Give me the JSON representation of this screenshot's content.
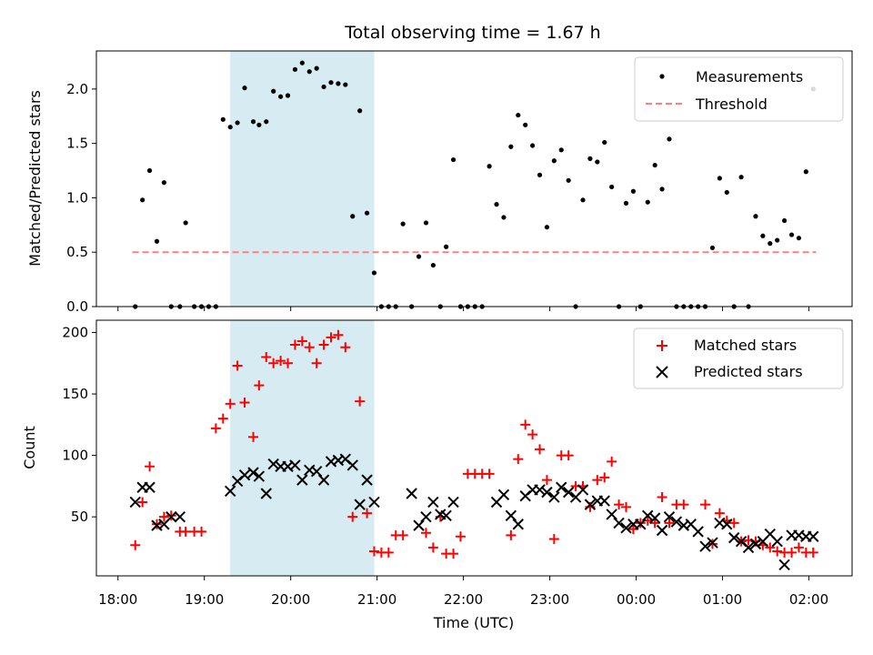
{
  "chart_data": {
    "title": "Total observing time = 1.67 h",
    "xlabel": "Time (UTC)",
    "x_ticks": [
      "18:00",
      "19:00",
      "20:00",
      "21:00",
      "22:00",
      "23:00",
      "00:00",
      "01:00",
      "02:00"
    ],
    "x_range_hours": [
      17.75,
      26.5
    ],
    "shaded_region": {
      "start": "19:18",
      "end": "20:58",
      "color": "#add8e6"
    },
    "panels": [
      {
        "type": "scatter",
        "ylabel": "Matched/Predicted stars",
        "ylim": [
          0,
          2.35
        ],
        "yticks": [
          "0.0",
          "0.5",
          "1.0",
          "1.5",
          "2.0"
        ],
        "legend": [
          "Measurements",
          "Threshold"
        ],
        "legend_position": "top-right",
        "threshold": {
          "value": 0.5,
          "x_start": "18:10",
          "x_end": "02:05",
          "color": "#ff7f7f"
        },
        "series": [
          {
            "name": "Measurements",
            "color": "#000000",
            "x": [
              "18:12",
              "18:17",
              "18:22",
              "18:27",
              "18:32",
              "18:37",
              "18:43",
              "18:47",
              "18:53",
              "18:58",
              "19:03",
              "19:08",
              "19:13",
              "19:18",
              "19:23",
              "19:28",
              "19:34",
              "19:38",
              "19:43",
              "19:48",
              "19:53",
              "19:58",
              "20:03",
              "20:08",
              "20:13",
              "20:18",
              "20:23",
              "20:28",
              "20:33",
              "20:38",
              "20:43",
              "20:48",
              "20:53",
              "20:58",
              "21:03",
              "21:08",
              "21:13",
              "21:18",
              "21:24",
              "21:29",
              "21:34",
              "21:39",
              "21:44",
              "21:48",
              "21:53",
              "21:58",
              "22:03",
              "22:08",
              "22:13",
              "22:18",
              "22:23",
              "22:28",
              "22:33",
              "22:38",
              "22:43",
              "22:48",
              "22:53",
              "22:58",
              "23:03",
              "23:08",
              "23:13",
              "23:18",
              "23:23",
              "23:28",
              "23:33",
              "23:38",
              "23:43",
              "23:48",
              "23:53",
              "23:58",
              "00:03",
              "00:08",
              "00:13",
              "00:18",
              "00:23",
              "00:28",
              "00:33",
              "00:38",
              "00:43",
              "00:48",
              "00:53",
              "00:58",
              "01:03",
              "01:08",
              "01:13",
              "01:18",
              "01:23",
              "01:28",
              "01:33",
              "01:38",
              "01:43",
              "01:48",
              "01:53",
              "01:58",
              "02:03"
            ],
            "y": [
              0.0,
              0.98,
              1.25,
              0.6,
              1.14,
              0.0,
              0.0,
              0.77,
              0.0,
              0.0,
              0.0,
              0.0,
              1.72,
              1.65,
              1.69,
              2.01,
              1.7,
              1.67,
              1.7,
              1.98,
              1.93,
              1.94,
              2.18,
              2.24,
              2.16,
              2.19,
              2.02,
              2.06,
              2.05,
              2.04,
              0.83,
              1.8,
              0.86,
              0.31,
              0.0,
              0.0,
              0.0,
              0.76,
              0.0,
              0.46,
              0.77,
              0.38,
              0.0,
              0.55,
              1.35,
              0.0,
              0.0,
              0.0,
              0.0,
              1.29,
              0.94,
              0.82,
              1.47,
              1.76,
              1.67,
              1.48,
              1.21,
              0.73,
              1.34,
              1.44,
              1.16,
              0.0,
              0.98,
              1.36,
              1.33,
              1.51,
              1.1,
              0.0,
              0.95,
              1.06,
              0.0,
              0.96,
              1.3,
              1.08,
              1.54,
              0.0,
              0.0,
              0.0,
              0.0,
              0.0,
              0.54,
              1.18,
              1.05,
              0.0,
              1.19,
              0.0,
              0.83,
              0.65,
              0.58,
              0.61,
              0.79,
              0.66,
              0.63,
              1.24,
              2.0
            ]
          }
        ]
      },
      {
        "type": "scatter",
        "ylabel": "Count",
        "ylim": [
          2,
          210
        ],
        "yticks": [
          "50",
          "100",
          "150",
          "200"
        ],
        "legend": [
          "Matched stars",
          "Predicted stars"
        ],
        "legend_position": "top-right",
        "series": [
          {
            "name": "Matched stars",
            "color": "#ff0000",
            "marker": "+",
            "x": [
              "18:12",
              "18:17",
              "18:22",
              "18:27",
              "18:32",
              "18:37",
              "18:43",
              "18:47",
              "18:53",
              "18:58",
              "19:08",
              "19:13",
              "19:18",
              "19:23",
              "19:28",
              "19:34",
              "19:38",
              "19:43",
              "19:48",
              "19:53",
              "19:58",
              "20:03",
              "20:08",
              "20:13",
              "20:18",
              "20:23",
              "20:28",
              "20:33",
              "20:38",
              "20:43",
              "20:48",
              "20:53",
              "20:58",
              "21:03",
              "21:08",
              "21:13",
              "21:18",
              "21:34",
              "21:39",
              "21:44",
              "21:48",
              "21:53",
              "21:58",
              "22:03",
              "22:08",
              "22:13",
              "22:18",
              "22:33",
              "22:38",
              "22:43",
              "22:48",
              "22:53",
              "22:58",
              "23:03",
              "23:08",
              "23:13",
              "23:18",
              "23:23",
              "23:28",
              "23:33",
              "23:38",
              "23:43",
              "23:48",
              "23:53",
              "23:58",
              "00:03",
              "00:08",
              "00:13",
              "00:18",
              "00:23",
              "00:28",
              "00:33",
              "00:48",
              "00:53",
              "00:58",
              "01:03",
              "01:08",
              "01:13",
              "01:18",
              "01:23",
              "01:28",
              "01:33",
              "01:38",
              "01:43",
              "01:48",
              "01:53",
              "01:58",
              "02:03"
            ],
            "y": [
              27,
              62,
              91,
              44,
              50,
              51,
              38,
              38,
              38,
              38,
              122,
              130,
              142,
              173,
              143,
              115,
              157,
              180,
              175,
              177,
              175,
              190,
              193,
              188,
              175,
              190,
              196,
              198,
              188,
              50,
              144,
              53,
              22,
              21,
              21,
              35,
              35,
              37,
              25,
              50,
              20,
              20,
              34,
              85,
              85,
              85,
              85,
              35,
              97,
              125,
              117,
              105,
              80,
              32,
              100,
              100,
              75,
              75,
              58,
              80,
              82,
              95,
              60,
              58,
              40,
              45,
              47,
              45,
              66,
              45,
              60,
              60,
              60,
              28,
              53,
              47,
              45,
              30,
              31,
              30,
              27,
              25,
              22,
              21,
              21,
              25,
              21,
              21
            ]
          },
          {
            "name": "Predicted stars",
            "color": "#000000",
            "marker": "x",
            "x": [
              "18:12",
              "18:17",
              "18:22",
              "18:27",
              "18:32",
              "18:37",
              "18:43",
              "19:18",
              "19:23",
              "19:28",
              "19:34",
              "19:38",
              "19:43",
              "19:48",
              "19:53",
              "19:58",
              "20:03",
              "20:08",
              "20:13",
              "20:18",
              "20:23",
              "20:28",
              "20:33",
              "20:38",
              "20:43",
              "20:48",
              "20:53",
              "20:58",
              "21:24",
              "21:29",
              "21:34",
              "21:39",
              "21:44",
              "21:48",
              "21:53",
              "22:23",
              "22:28",
              "22:33",
              "22:38",
              "22:43",
              "22:48",
              "22:53",
              "22:58",
              "23:03",
              "23:08",
              "23:13",
              "23:18",
              "23:23",
              "23:28",
              "23:33",
              "23:38",
              "23:43",
              "23:48",
              "23:53",
              "23:58",
              "00:03",
              "00:08",
              "00:13",
              "00:18",
              "00:23",
              "00:28",
              "00:33",
              "00:38",
              "00:43",
              "00:48",
              "00:53",
              "00:58",
              "01:03",
              "01:08",
              "01:13",
              "01:18",
              "01:23",
              "01:28",
              "01:33",
              "01:38",
              "01:43",
              "01:48",
              "01:53",
              "01:58",
              "02:03"
            ],
            "y": [
              62,
              74,
              74,
              43,
              44,
              50,
              50,
              71,
              79,
              84,
              86,
              83,
              69,
              93,
              91,
              91,
              92,
              80,
              88,
              87,
              80,
              95,
              96,
              97,
              92,
              60,
              80,
              62,
              69,
              43,
              50,
              62,
              52,
              51,
              62,
              62,
              68,
              51,
              44,
              67,
              72,
              72,
              70,
              66,
              74,
              70,
              66,
              72,
              60,
              63,
              63,
              52,
              45,
              41,
              44,
              44,
              51,
              49,
              39,
              50,
              46,
              43,
              44,
              38,
              26,
              29,
              45,
              44,
              33,
              30,
              25,
              28,
              30,
              36,
              30,
              11,
              35,
              35,
              34,
              34
            ]
          }
        ]
      }
    ]
  }
}
